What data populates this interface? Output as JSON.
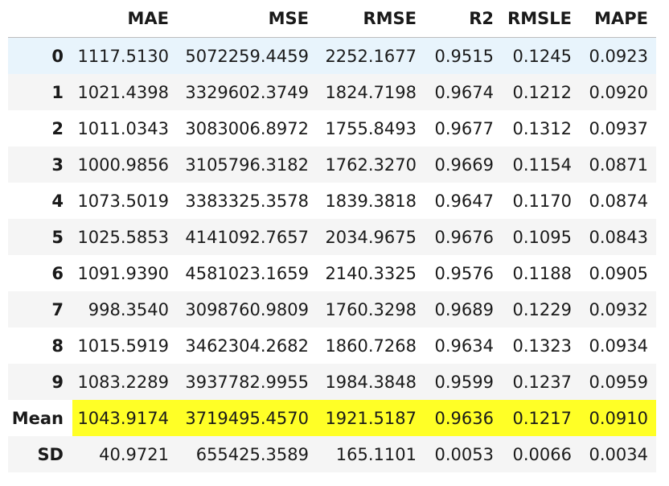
{
  "table": {
    "columns": [
      "MAE",
      "MSE",
      "RMSE",
      "R2",
      "RMSLE",
      "MAPE"
    ],
    "rows": [
      {
        "label": "0",
        "values": [
          "1117.5130",
          "5072259.4459",
          "2252.1677",
          "0.9515",
          "0.1245",
          "0.0923"
        ]
      },
      {
        "label": "1",
        "values": [
          "1021.4398",
          "3329602.3749",
          "1824.7198",
          "0.9674",
          "0.1212",
          "0.0920"
        ]
      },
      {
        "label": "2",
        "values": [
          "1011.0343",
          "3083006.8972",
          "1755.8493",
          "0.9677",
          "0.1312",
          "0.0937"
        ]
      },
      {
        "label": "3",
        "values": [
          "1000.9856",
          "3105796.3182",
          "1762.3270",
          "0.9669",
          "0.1154",
          "0.0871"
        ]
      },
      {
        "label": "4",
        "values": [
          "1073.5019",
          "3383325.3578",
          "1839.3818",
          "0.9647",
          "0.1170",
          "0.0874"
        ]
      },
      {
        "label": "5",
        "values": [
          "1025.5853",
          "4141092.7657",
          "2034.9675",
          "0.9676",
          "0.1095",
          "0.0843"
        ]
      },
      {
        "label": "6",
        "values": [
          "1091.9390",
          "4581023.1659",
          "2140.3325",
          "0.9576",
          "0.1188",
          "0.0905"
        ]
      },
      {
        "label": "7",
        "values": [
          "998.3540",
          "3098760.9809",
          "1760.3298",
          "0.9689",
          "0.1229",
          "0.0932"
        ]
      },
      {
        "label": "8",
        "values": [
          "1015.5919",
          "3462304.2682",
          "1860.7268",
          "0.9634",
          "0.1323",
          "0.0934"
        ]
      },
      {
        "label": "9",
        "values": [
          "1083.2289",
          "3937782.9955",
          "1984.3848",
          "0.9599",
          "0.1237",
          "0.0959"
        ]
      },
      {
        "label": "Mean",
        "values": [
          "1043.9174",
          "3719495.4570",
          "1921.5187",
          "0.9636",
          "0.1217",
          "0.0910"
        ]
      },
      {
        "label": "SD",
        "values": [
          "40.9721",
          "655425.3589",
          "165.1101",
          "0.0053",
          "0.0066",
          "0.0034"
        ]
      }
    ]
  },
  "colors": {
    "highlight": "#ffff26",
    "hover_row": "#e8f4fc",
    "striped_row": "#f5f5f5"
  }
}
